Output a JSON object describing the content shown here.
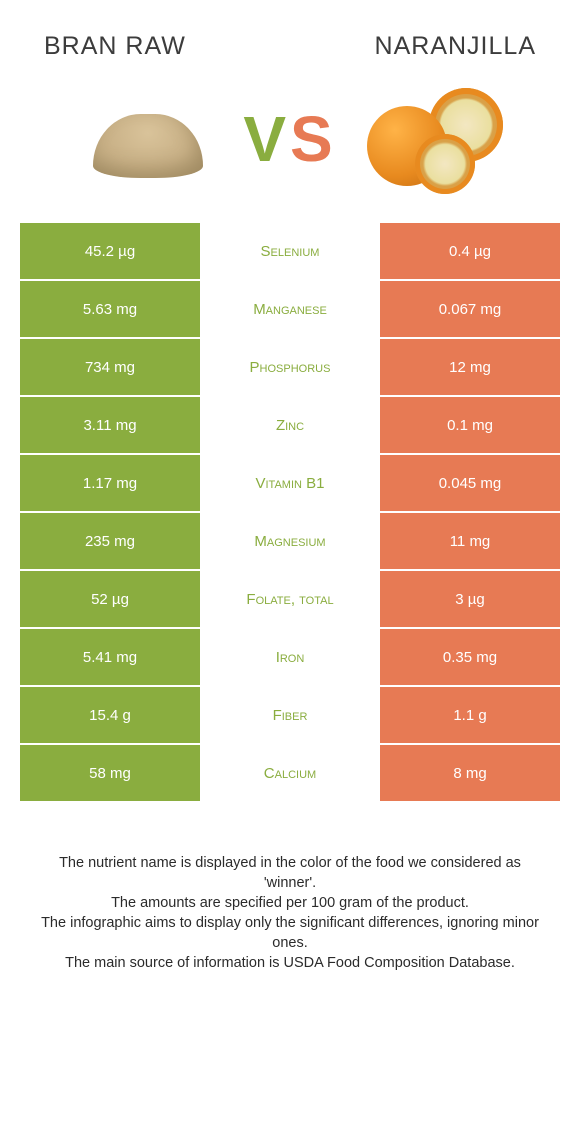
{
  "food_left": {
    "title": "Bran raw",
    "color": "#8aad3f"
  },
  "food_right": {
    "title": "Naranjilla",
    "color": "#e77a54"
  },
  "vs": {
    "v_color": "#8aad3f",
    "s_color": "#e77a54"
  },
  "rows": [
    {
      "nutrient": "Selenium",
      "left": "45.2 µg",
      "right": "0.4 µg",
      "winner": "left"
    },
    {
      "nutrient": "Manganese",
      "left": "5.63 mg",
      "right": "0.067 mg",
      "winner": "left"
    },
    {
      "nutrient": "Phosphorus",
      "left": "734 mg",
      "right": "12 mg",
      "winner": "left"
    },
    {
      "nutrient": "Zinc",
      "left": "3.11 mg",
      "right": "0.1 mg",
      "winner": "left"
    },
    {
      "nutrient": "Vitamin B1",
      "left": "1.17 mg",
      "right": "0.045 mg",
      "winner": "left"
    },
    {
      "nutrient": "Magnesium",
      "left": "235 mg",
      "right": "11 mg",
      "winner": "left"
    },
    {
      "nutrient": "Folate, total",
      "left": "52 µg",
      "right": "3 µg",
      "winner": "left"
    },
    {
      "nutrient": "Iron",
      "left": "5.41 mg",
      "right": "0.35 mg",
      "winner": "left"
    },
    {
      "nutrient": "Fiber",
      "left": "15.4 g",
      "right": "1.1 g",
      "winner": "left"
    },
    {
      "nutrient": "Calcium",
      "left": "58 mg",
      "right": "8 mg",
      "winner": "left"
    }
  ],
  "footer_lines": [
    "The nutrient name is displayed in the color of the food we considered as 'winner'.",
    "The amounts are specified per 100 gram of the product.",
    "The infographic aims to display only the significant differences, ignoring minor ones.",
    "The main source of information is USDA Food Composition Database."
  ]
}
